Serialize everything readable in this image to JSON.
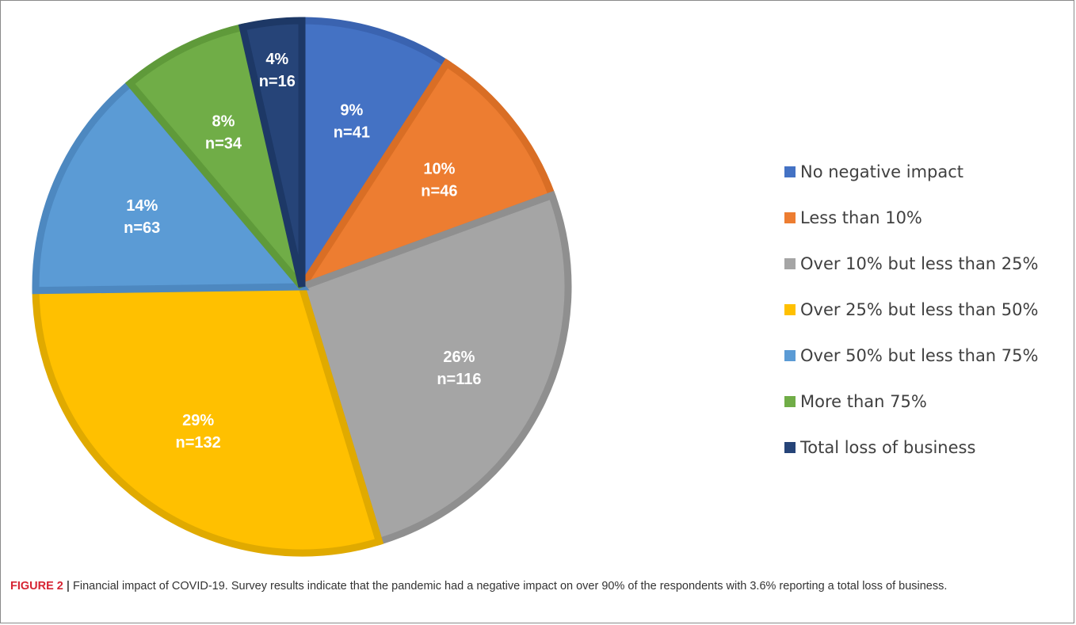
{
  "chart_data": {
    "type": "pie",
    "slices": [
      {
        "label": "No negative impact",
        "percent_label": "9%",
        "n_label": "n=41",
        "value": 41,
        "color": "#4472C4",
        "edge": "#3a63b0"
      },
      {
        "label": "Less than 10%",
        "percent_label": "10%",
        "n_label": "n=46",
        "value": 46,
        "color": "#ED7D31",
        "edge": "#d96e25"
      },
      {
        "label": "Over 10% but less than 25%",
        "percent_label": "26%",
        "n_label": "n=116",
        "value": 116,
        "color": "#A5A5A5",
        "edge": "#8f8f8f"
      },
      {
        "label": "Over 25% but less than 50%",
        "percent_label": "29%",
        "n_label": "n=132",
        "value": 132,
        "color": "#FFC000",
        "edge": "#e0aa00"
      },
      {
        "label": "Over 50% but less than 75%",
        "percent_label": "14%",
        "n_label": "n=63",
        "value": 63,
        "color": "#5B9BD5",
        "edge": "#4d88c0"
      },
      {
        "label": "More than 75%",
        "percent_label": "8%",
        "n_label": "n=34",
        "value": 34,
        "color": "#70AD47",
        "edge": "#5f9a3a"
      },
      {
        "label": "Total loss of business",
        "percent_label": "4%",
        "n_label": "n=16",
        "value": 16,
        "color": "#264478",
        "edge": "#1d3866"
      }
    ],
    "legend_position": "right"
  },
  "caption": {
    "label": "FIGURE 2",
    "separator": "|",
    "text": "Financial impact of COVID-19. Survey results indicate that the pandemic had a negative impact on over 90% of the respondents with 3.6% reporting a total loss of business."
  }
}
